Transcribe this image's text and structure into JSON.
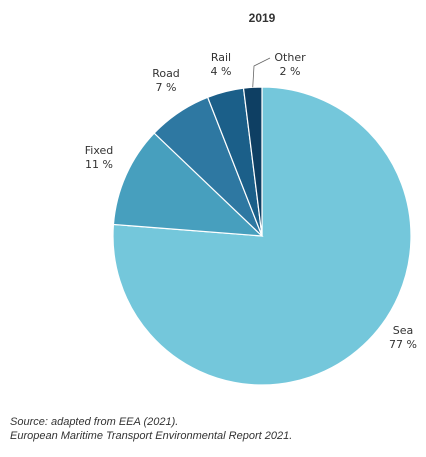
{
  "chart_data": {
    "type": "pie",
    "title": "2019",
    "slices": [
      {
        "name": "Sea",
        "value": 77,
        "value_label": "77 %",
        "color": "#74c7db"
      },
      {
        "name": "Fixed",
        "value": 11,
        "value_label": "11 %",
        "color": "#479fbe"
      },
      {
        "name": "Road",
        "value": 7,
        "value_label": "7 %",
        "color": "#2e78a2"
      },
      {
        "name": "Rail",
        "value": 4,
        "value_label": "4 %",
        "color": "#1b5f89"
      },
      {
        "name": "Other",
        "value": 2,
        "value_label": "2 %",
        "color": "#0e3f63"
      }
    ],
    "legend": "none"
  },
  "source": {
    "line1": "Source: adapted from EEA (2021).",
    "line2": "European Maritime Transport Environmental Report 2021."
  }
}
